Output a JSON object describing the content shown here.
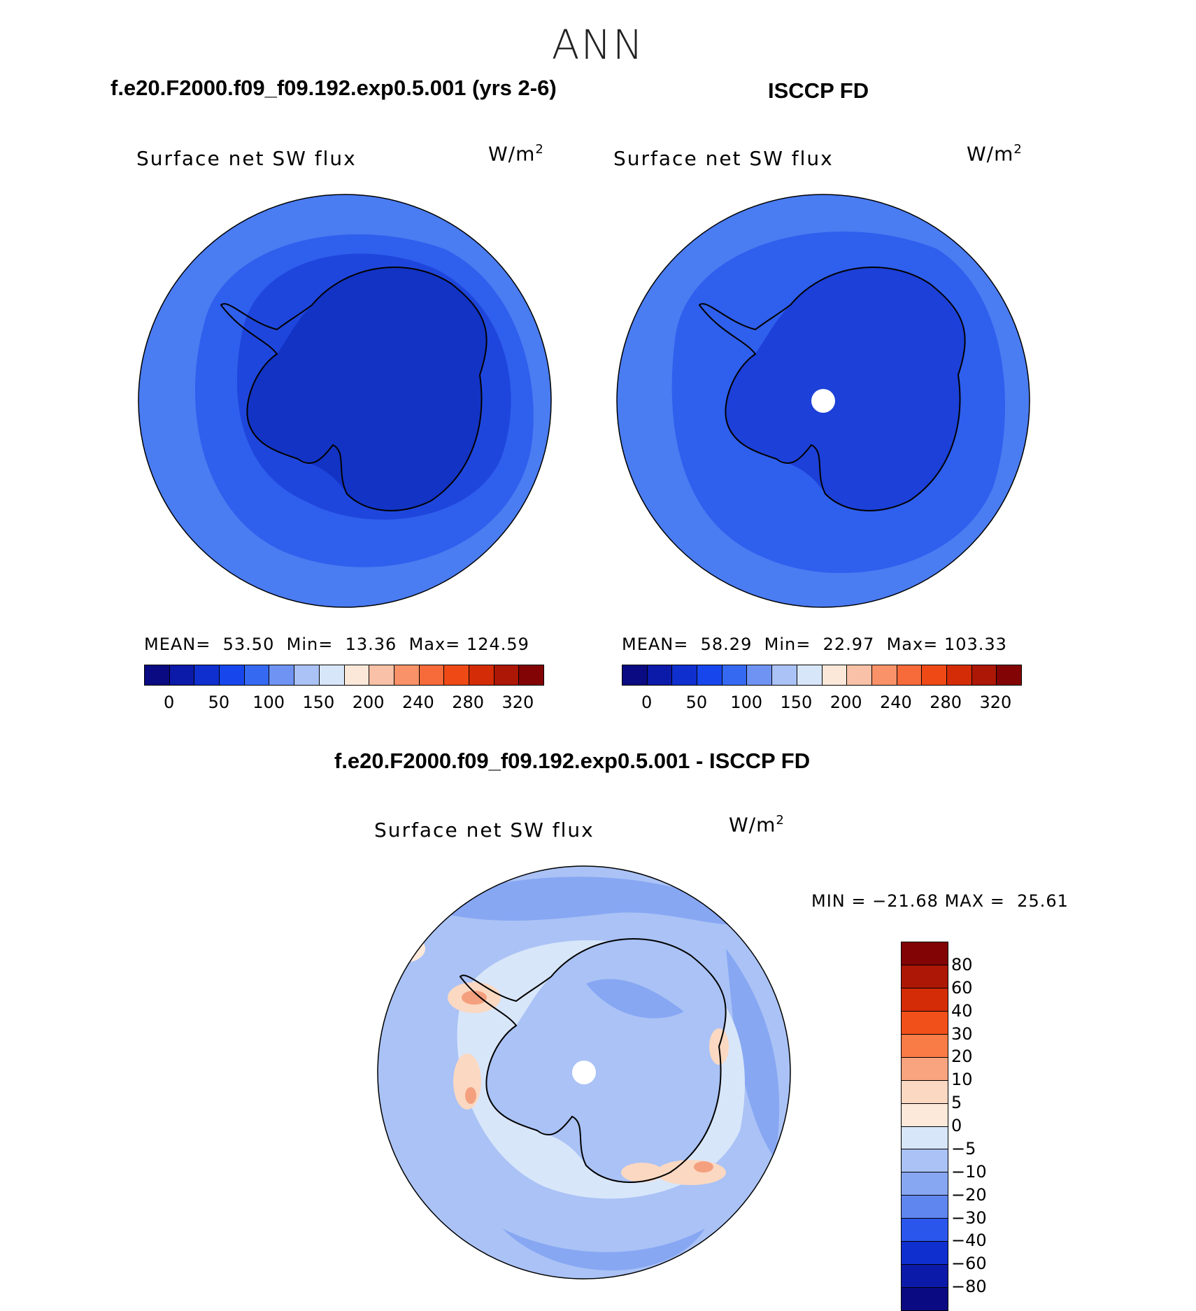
{
  "season": "ANN",
  "panels": {
    "model": {
      "title": "f.e20.F2000.f09_f09.192.exp0.5.001 (yrs 2-6)",
      "variable": "Surface net SW flux",
      "units_base": "W/m",
      "units_exp": "2",
      "mean_label": "MEAN=",
      "mean": "53.50",
      "min_label": "Min=",
      "min": "13.36",
      "max_label": "Max=",
      "max": "124.59"
    },
    "obs": {
      "title": "ISCCP FD",
      "variable": "Surface net SW flux",
      "units_base": "W/m",
      "units_exp": "2",
      "mean_label": "MEAN=",
      "mean": "58.29",
      "min_label": "Min=",
      "min": "22.97",
      "max_label": "Max=",
      "max": "103.33"
    },
    "diff": {
      "title": "f.e20.F2000.f09_f09.192.exp0.5.001 - ISCCP FD",
      "variable": "Surface net SW flux",
      "units_base": "W/m",
      "units_exp": "2",
      "min_label": "MIN =",
      "min": "−21.68",
      "max_label": "MAX =",
      "max": "25.61"
    }
  },
  "colorbar_abs": {
    "colors": [
      "#0a0a82",
      "#0b1aa8",
      "#0f2fcf",
      "#1747ec",
      "#3569f2",
      "#6f93f3",
      "#aac2f5",
      "#d8e6fa",
      "#fce8d8",
      "#f9c1a7",
      "#f99268",
      "#f76a3a",
      "#ef4a16",
      "#d42c07",
      "#ad1705",
      "#820404"
    ],
    "ticks": [
      "0",
      "50",
      "100",
      "150",
      "200",
      "240",
      "280",
      "320"
    ]
  },
  "colorbar_diff": {
    "colors_top_to_bottom": [
      "#820404",
      "#ad1705",
      "#d42c07",
      "#f2501a",
      "#f97b45",
      "#f9a47e",
      "#fbd8c1",
      "#fde9da",
      "#d8e6fa",
      "#aac2f5",
      "#87a7f3",
      "#5f85ef",
      "#2a56ec",
      "#0f2fcf",
      "#0b1aa8",
      "#0a0a82"
    ],
    "ticks": [
      "80",
      "60",
      "40",
      "30",
      "20",
      "10",
      "5",
      "0",
      "−5",
      "−10",
      "−20",
      "−30",
      "−40",
      "−60",
      "−80"
    ]
  },
  "map_colors": {
    "outer": "#4a7cf2",
    "ring": "#2f5fed",
    "inner": "#1f46dc",
    "continent": "#1233c4",
    "obs_continent": "#1c40d8",
    "pole_hole": "#ffffff",
    "diff_bg": "#aac2f5",
    "diff_light": "#d8e6fa",
    "diff_mid": "#87a7f3",
    "diff_warm": "#fbd8c1",
    "diff_hot": "#f4a07e"
  }
}
